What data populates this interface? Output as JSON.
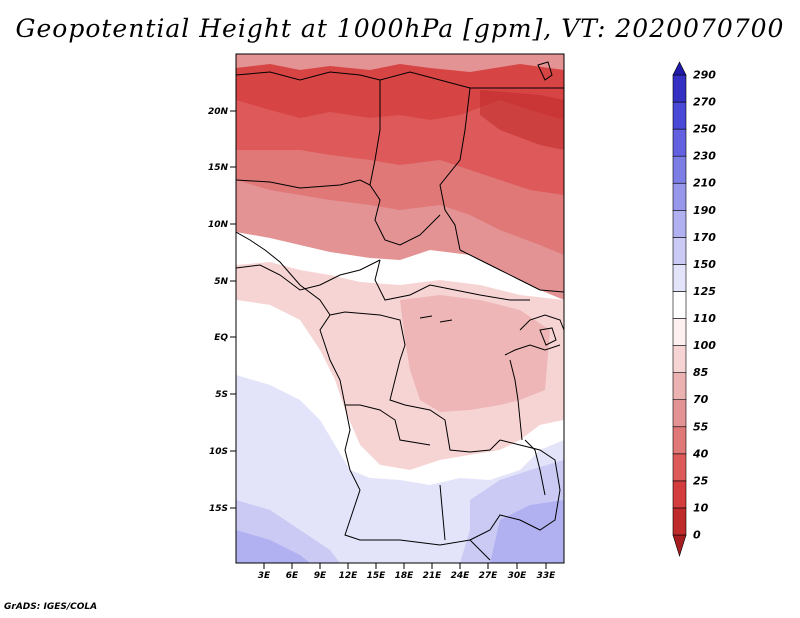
{
  "title": "Geopotential Height at 1000hPa [gpm], VT: 2020070700",
  "credit": "GrADS: IGES/COLA",
  "map": {
    "lat_labels": [
      "20N",
      "15N",
      "10N",
      "5N",
      "EQ",
      "5S",
      "10S",
      "15S"
    ],
    "lon_labels": [
      "3E",
      "6E",
      "9E",
      "12E",
      "15E",
      "18E",
      "21E",
      "24E",
      "27E",
      "30E",
      "33E"
    ]
  },
  "colorbar": {
    "levels": [
      "0",
      "10",
      "25",
      "40",
      "55",
      "70",
      "85",
      "100",
      "110",
      "125",
      "150",
      "170",
      "190",
      "210",
      "230",
      "250",
      "270",
      "290"
    ],
    "colors": [
      "#a51d20",
      "#bf2b2b",
      "#d43d3d",
      "#de5a5a",
      "#e07878",
      "#e39393",
      "#ecb2b2",
      "#f7d4d4",
      "#fef0f0",
      "#ffffff",
      "#e3e3fa",
      "#cacaf5",
      "#b1b0f0",
      "#9797ec",
      "#7d7de6",
      "#6361df",
      "#4a48d6",
      "#3430c4",
      "#1f1aa8"
    ]
  }
}
